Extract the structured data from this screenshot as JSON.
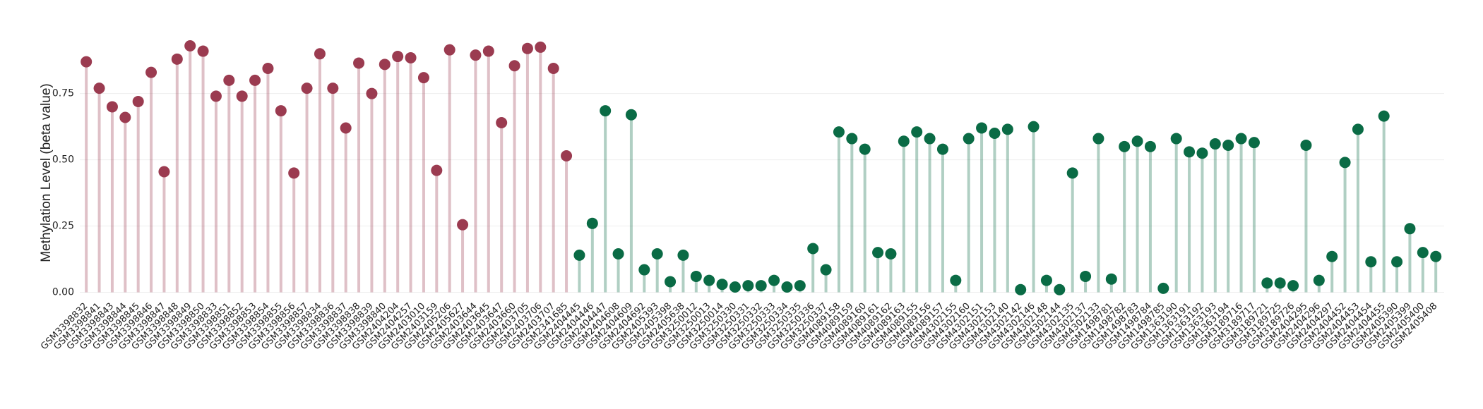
{
  "chart_data": {
    "type": "lollipop",
    "y_label": "Methylation Level (beta value)",
    "categories": [
      "GSM3398832",
      "GSM3398841",
      "GSM3398843",
      "GSM3398844",
      "GSM3398845",
      "GSM3398846",
      "GSM3398847",
      "GSM3398848",
      "GSM3398849",
      "GSM3398850",
      "GSM3398833",
      "GSM3398851",
      "GSM3398852",
      "GSM3398853",
      "GSM3398854",
      "GSM3398855",
      "GSM3398856",
      "GSM3398857",
      "GSM3398834",
      "GSM3398836",
      "GSM3398837",
      "GSM3398838",
      "GSM3398839",
      "GSM3398840",
      "GSM2404204",
      "GSM2404257",
      "GSM2403010",
      "GSM2403159",
      "GSM2405206",
      "GSM2405627",
      "GSM2403644",
      "GSM2403645",
      "GSM2403647",
      "GSM2403660",
      "GSM2403705",
      "GSM2403706",
      "GSM2403707",
      "GSM2341685",
      "GSM2404445",
      "GSM2404446",
      "GSM2404447",
      "GSM2404608",
      "GSM2404609",
      "GSM2404692",
      "GSM2405393",
      "GSM2405398",
      "GSM2405638",
      "GSM3250012",
      "GSM3250013",
      "GSM3250014",
      "GSM3250330",
      "GSM3250331",
      "GSM3250332",
      "GSM3250333",
      "GSM3250334",
      "GSM3250335",
      "GSM3250336",
      "GSM3250337",
      "GSM4089158",
      "GSM4089159",
      "GSM4089160",
      "GSM4089161",
      "GSM4089162",
      "GSM4089163",
      "GSM4089155",
      "GSM4089156",
      "GSM4089157",
      "GSM4302155",
      "GSM4302160",
      "GSM4302151",
      "GSM4302153",
      "GSM4302140",
      "GSM4302142",
      "GSM4302146",
      "GSM4302148",
      "GSM4302144",
      "GSM4302135",
      "GSM4302137",
      "GSM4302133",
      "GSM1498781",
      "GSM1498782",
      "GSM1498783",
      "GSM1498784",
      "GSM1498785",
      "GSM1363190",
      "GSM1363191",
      "GSM1363192",
      "GSM1363193",
      "GSM1363194",
      "GSM3189716",
      "GSM3189717",
      "GSM3189721",
      "GSM3189725",
      "GSM3189726",
      "GSM2404295",
      "GSM2404296",
      "GSM2404297",
      "GSM2404452",
      "GSM2404453",
      "GSM2404454",
      "GSM2404455",
      "GSM2405390",
      "GSM2405399",
      "GSM2405400",
      "GSM2405408"
    ],
    "series": [
      {
        "color": "#9b3b50",
        "values": [
          0.87,
          0.77,
          0.7,
          0.66,
          0.72,
          0.83,
          0.455,
          0.88,
          0.93,
          0.91,
          0.74,
          0.8,
          0.74,
          0.8,
          0.845,
          0.685,
          0.45,
          0.77,
          0.9,
          0.77,
          0.62,
          0.865,
          0.75,
          0.86,
          0.89,
          0.885,
          0.81,
          0.46,
          0.915,
          0.255,
          0.895,
          0.91,
          0.64,
          0.855,
          0.92,
          0.925,
          0.845,
          0.515,
          null,
          null,
          null,
          null,
          null,
          null,
          null,
          null,
          null,
          null,
          null,
          null,
          null,
          null,
          null,
          null,
          null,
          null,
          null,
          null,
          null,
          null,
          null,
          null,
          null,
          null,
          null,
          null,
          null,
          null,
          null,
          null,
          null,
          null,
          null,
          null,
          null,
          null,
          null,
          null,
          null,
          null,
          null,
          null,
          null,
          null,
          null,
          null,
          null,
          null,
          null,
          null,
          null,
          null,
          null,
          null,
          null,
          null,
          null,
          null,
          null,
          null,
          null,
          null,
          null,
          null,
          null
        ]
      },
      {
        "color": "#0a6b45",
        "values": [
          null,
          null,
          null,
          null,
          null,
          null,
          null,
          null,
          null,
          null,
          null,
          null,
          null,
          null,
          null,
          null,
          null,
          null,
          null,
          null,
          null,
          null,
          null,
          null,
          null,
          null,
          null,
          null,
          null,
          null,
          null,
          null,
          null,
          null,
          null,
          null,
          null,
          null,
          0.14,
          0.26,
          0.685,
          0.145,
          0.67,
          0.085,
          0.145,
          0.04,
          0.14,
          0.06,
          0.045,
          0.03,
          0.02,
          0.025,
          0.025,
          0.045,
          0.02,
          0.025,
          0.165,
          0.085,
          0.605,
          0.58,
          0.54,
          0.15,
          0.145,
          0.57,
          0.605,
          0.58,
          0.54,
          0.045,
          0.58,
          0.62,
          0.6,
          0.615,
          0.01,
          0.625,
          0.045,
          0.01,
          0.45,
          0.06,
          0.58,
          0.05,
          0.55,
          0.57,
          0.55,
          0.015,
          0.58,
          0.53,
          0.525,
          0.56,
          0.555,
          0.58,
          0.565,
          0.035,
          0.035,
          0.025,
          0.555,
          0.045,
          0.135,
          0.49,
          0.615,
          0.115,
          0.665,
          0.115,
          0.24,
          0.15,
          0.135
        ]
      }
    ],
    "ylim": [
      -0.02,
      0.97
    ],
    "yticks": [
      {
        "value": 0,
        "label": "0.00"
      },
      {
        "value": 0.25,
        "label": "0.25"
      },
      {
        "value": 0.5,
        "label": "0.50"
      },
      {
        "value": 0.75,
        "label": "0.75"
      }
    ],
    "grid": true
  }
}
